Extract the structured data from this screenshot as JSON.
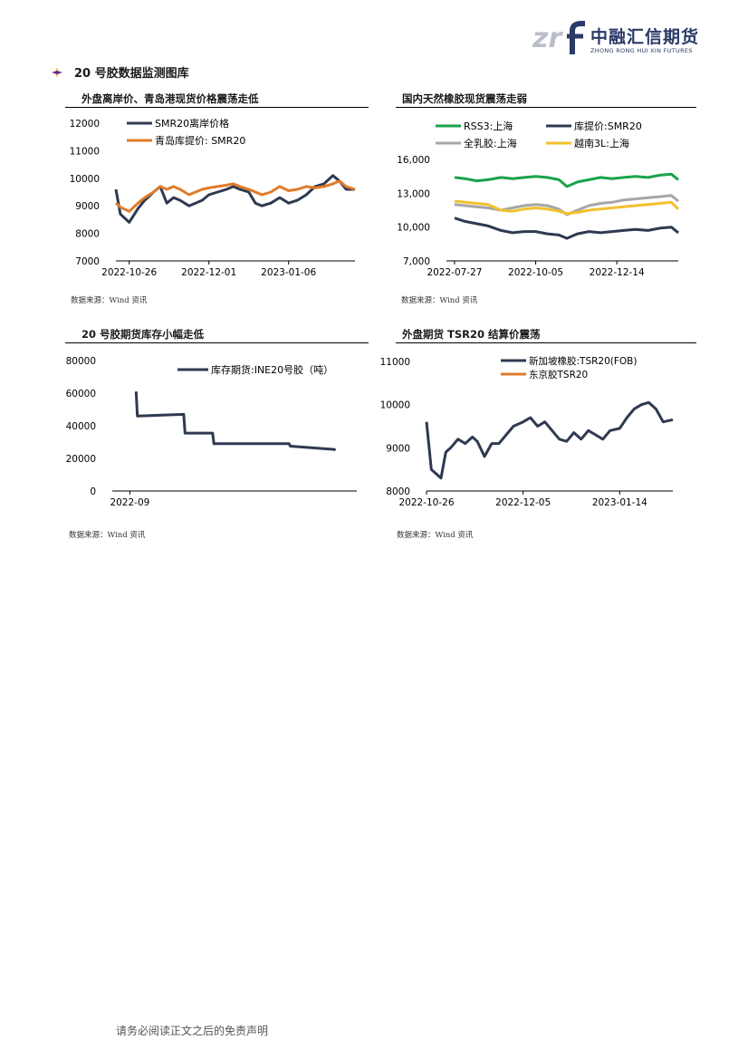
{
  "logo": {
    "mark": "zrf",
    "cn": "中融汇信期货",
    "en": "ZHONG RONG HUI XIN FUTURES"
  },
  "section_title": "20 号胶数据监测图库",
  "panels": {
    "p1": {
      "title": "外盘离岸价、青岛港现货价格震荡走低",
      "source": "数据来源：Wind 资讯"
    },
    "p2": {
      "title": "国内天然橡胶现货震荡走弱",
      "source": "数据来源：Wind 资讯"
    },
    "p3": {
      "title": "20 号胶期货库存小幅走低",
      "source": "数据来源：Wind 资讯"
    },
    "p4": {
      "title": "外盘期货 TSR20 结算价震荡",
      "source": "数据来源：Wind 资讯"
    }
  },
  "footer": "请务必阅读正文之后的免责声明",
  "chart_data": [
    {
      "type": "line",
      "ylim": [
        7000,
        12000
      ],
      "yticks": [
        "12000",
        "11000",
        "10000",
        "9000",
        "8000",
        "7000"
      ],
      "x_range": [
        "2022-10-20",
        "2023-02-05"
      ],
      "xticks": [
        "2022-10-26",
        "2022-12-01",
        "2023-01-06"
      ],
      "grid": false,
      "legend": "top-left",
      "series": [
        {
          "name": "SMR20离岸价格",
          "color": "#2f3a50",
          "x": [
            "2022-10-20",
            "2022-10-22",
            "2022-10-26",
            "2022-10-30",
            "2022-11-02",
            "2022-11-06",
            "2022-11-09",
            "2022-11-12",
            "2022-11-15",
            "2022-11-18",
            "2022-11-22",
            "2022-11-25",
            "2022-11-28",
            "2022-12-01",
            "2022-12-05",
            "2022-12-09",
            "2022-12-12",
            "2022-12-15",
            "2022-12-19",
            "2022-12-22",
            "2022-12-25",
            "2022-12-29",
            "2023-01-02",
            "2023-01-06",
            "2023-01-10",
            "2023-01-14",
            "2023-01-18",
            "2023-01-22",
            "2023-01-26",
            "2023-01-29",
            "2023-02-01",
            "2023-02-05"
          ],
          "values": [
            9600,
            8700,
            8400,
            8900,
            9200,
            9500,
            9700,
            9100,
            9300,
            9200,
            9000,
            9100,
            9200,
            9400,
            9500,
            9600,
            9700,
            9600,
            9500,
            9100,
            9000,
            9100,
            9300,
            9100,
            9200,
            9400,
            9700,
            9800,
            10100,
            9900,
            9600,
            9600
          ]
        },
        {
          "name": "青岛库提价: SMR20",
          "color": "#e07b2a",
          "x": [
            "2022-10-20",
            "2022-10-22",
            "2022-10-26",
            "2022-10-30",
            "2022-11-02",
            "2022-11-06",
            "2022-11-09",
            "2022-11-12",
            "2022-11-15",
            "2022-11-18",
            "2022-11-22",
            "2022-11-25",
            "2022-11-28",
            "2022-12-01",
            "2022-12-05",
            "2022-12-09",
            "2022-12-12",
            "2022-12-15",
            "2022-12-19",
            "2022-12-22",
            "2022-12-25",
            "2022-12-29",
            "2023-01-02",
            "2023-01-06",
            "2023-01-10",
            "2023-01-14",
            "2023-01-18",
            "2023-01-22",
            "2023-01-26",
            "2023-01-29",
            "2023-02-01",
            "2023-02-05"
          ],
          "values": [
            9100,
            8950,
            8800,
            9100,
            9300,
            9500,
            9700,
            9600,
            9700,
            9600,
            9400,
            9500,
            9600,
            9650,
            9700,
            9750,
            9800,
            9700,
            9600,
            9500,
            9400,
            9500,
            9700,
            9550,
            9600,
            9700,
            9650,
            9700,
            9800,
            9900,
            9700,
            9600
          ]
        }
      ]
    },
    {
      "type": "line",
      "ylim": [
        7000,
        16000
      ],
      "yticks": [
        "16,000",
        "13,000",
        "10,000",
        "7,000"
      ],
      "x_range": [
        "2022-07-20",
        "2023-02-05"
      ],
      "xticks": [
        "2022-07-27",
        "2022-10-05",
        "2022-12-14"
      ],
      "grid": false,
      "legend": "top",
      "series": [
        {
          "name": "RSS3:上海",
          "color": "#1aa34a",
          "x": [
            "2022-07-27",
            "2022-08-05",
            "2022-08-15",
            "2022-08-25",
            "2022-09-05",
            "2022-09-15",
            "2022-09-25",
            "2022-10-05",
            "2022-10-15",
            "2022-10-25",
            "2022-11-01",
            "2022-11-10",
            "2022-11-20",
            "2022-11-30",
            "2022-12-10",
            "2022-12-20",
            "2022-12-30",
            "2023-01-10",
            "2023-01-20",
            "2023-01-30",
            "2023-02-05"
          ],
          "values": [
            14400,
            14300,
            14100,
            14200,
            14400,
            14300,
            14400,
            14500,
            14400,
            14200,
            13600,
            14000,
            14200,
            14400,
            14300,
            14400,
            14500,
            14400,
            14600,
            14700,
            14200
          ]
        },
        {
          "name": "库提价:SMR20",
          "color": "#2f3a50",
          "x": [
            "2022-07-27",
            "2022-08-05",
            "2022-08-15",
            "2022-08-25",
            "2022-09-05",
            "2022-09-15",
            "2022-09-25",
            "2022-10-05",
            "2022-10-15",
            "2022-10-25",
            "2022-11-01",
            "2022-11-10",
            "2022-11-20",
            "2022-11-30",
            "2022-12-10",
            "2022-12-20",
            "2022-12-30",
            "2023-01-10",
            "2023-01-20",
            "2023-01-30",
            "2023-02-05"
          ],
          "values": [
            10800,
            10500,
            10300,
            10100,
            9700,
            9500,
            9600,
            9600,
            9400,
            9300,
            9000,
            9400,
            9600,
            9500,
            9600,
            9700,
            9800,
            9700,
            9900,
            10000,
            9500
          ]
        },
        {
          "name": "全乳胶:上海",
          "color": "#a6a6a6",
          "x": [
            "2022-07-27",
            "2022-08-05",
            "2022-08-15",
            "2022-08-25",
            "2022-09-05",
            "2022-09-15",
            "2022-09-25",
            "2022-10-05",
            "2022-10-15",
            "2022-10-25",
            "2022-11-01",
            "2022-11-10",
            "2022-11-20",
            "2022-11-30",
            "2022-12-10",
            "2022-12-20",
            "2022-12-30",
            "2023-01-10",
            "2023-01-20",
            "2023-01-30",
            "2023-02-05"
          ],
          "values": [
            12000,
            11900,
            11800,
            11700,
            11500,
            11700,
            11900,
            12000,
            11900,
            11600,
            11100,
            11500,
            11900,
            12100,
            12200,
            12400,
            12500,
            12600,
            12700,
            12800,
            12300
          ]
        },
        {
          "name": "越南3L:上海",
          "color": "#f2c12e",
          "x": [
            "2022-07-27",
            "2022-08-05",
            "2022-08-15",
            "2022-08-25",
            "2022-09-05",
            "2022-09-15",
            "2022-09-25",
            "2022-10-05",
            "2022-10-15",
            "2022-10-25",
            "2022-11-01",
            "2022-11-10",
            "2022-11-20",
            "2022-11-30",
            "2022-12-10",
            "2022-12-20",
            "2022-12-30",
            "2023-01-10",
            "2023-01-20",
            "2023-01-30",
            "2023-02-05"
          ],
          "values": [
            12300,
            12200,
            12100,
            12000,
            11500,
            11400,
            11600,
            11700,
            11600,
            11400,
            11200,
            11300,
            11500,
            11600,
            11700,
            11800,
            11900,
            12000,
            12100,
            12200,
            11600
          ]
        }
      ]
    },
    {
      "type": "line",
      "ylim": [
        0,
        80000
      ],
      "yticks": [
        "80000",
        "60000",
        "40000",
        "20000",
        "0"
      ],
      "x_range": [
        "2022-09-01",
        "2023-03-15"
      ],
      "xticks": [
        "2022-09"
      ],
      "grid": false,
      "legend": "top-right",
      "series": [
        {
          "name": "库存期货:INE20号胶（吨）",
          "color": "#2f3a50",
          "x": [
            "2022-09-20",
            "2022-09-21",
            "2022-10-28",
            "2022-10-29",
            "2022-11-20",
            "2022-11-21",
            "2022-12-20",
            "2022-12-21",
            "2023-01-20",
            "2023-01-21",
            "2023-02-25",
            "2023-02-26"
          ],
          "values": [
            61000,
            46000,
            47000,
            35500,
            35500,
            29000,
            29000,
            29000,
            29000,
            27500,
            25500,
            25000
          ]
        }
      ]
    },
    {
      "type": "line",
      "ylim": [
        8000,
        11000
      ],
      "yticks": [
        "11000",
        "10000",
        "9000",
        "8000"
      ],
      "x_range": [
        "2022-10-26",
        "2023-02-05"
      ],
      "xticks": [
        "2022-10-26",
        "2022-12-05",
        "2023-01-14"
      ],
      "grid": false,
      "legend": "top",
      "series": [
        {
          "name": "新加坡橡胶:TSR20(FOB)",
          "color": "#2f3a50",
          "x": [
            "2022-10-26",
            "2022-10-28",
            "2022-11-01",
            "2022-11-03",
            "2022-11-05",
            "2022-11-08",
            "2022-11-11",
            "2022-11-14",
            "2022-11-16",
            "2022-11-19",
            "2022-11-22",
            "2022-11-25",
            "2022-11-28",
            "2022-12-01",
            "2022-12-05",
            "2022-12-08",
            "2022-12-11",
            "2022-12-14",
            "2022-12-17",
            "2022-12-20",
            "2022-12-23",
            "2022-12-26",
            "2022-12-29",
            "2023-01-01",
            "2023-01-04",
            "2023-01-07",
            "2023-01-10",
            "2023-01-14",
            "2023-01-17",
            "2023-01-20",
            "2023-01-23",
            "2023-01-26",
            "2023-01-29",
            "2023-02-01",
            "2023-02-05"
          ],
          "values": [
            9600,
            8500,
            8300,
            8900,
            9000,
            9200,
            9100,
            9250,
            9150,
            8800,
            9100,
            9100,
            9300,
            9500,
            9600,
            9700,
            9500,
            9600,
            9400,
            9200,
            9150,
            9350,
            9200,
            9400,
            9300,
            9200,
            9400,
            9450,
            9700,
            9900,
            10000,
            10050,
            9900,
            9600,
            9650
          ]
        },
        {
          "name": "东京胶TSR20",
          "color": "#e07b2a",
          "x": [],
          "values": []
        }
      ]
    }
  ]
}
